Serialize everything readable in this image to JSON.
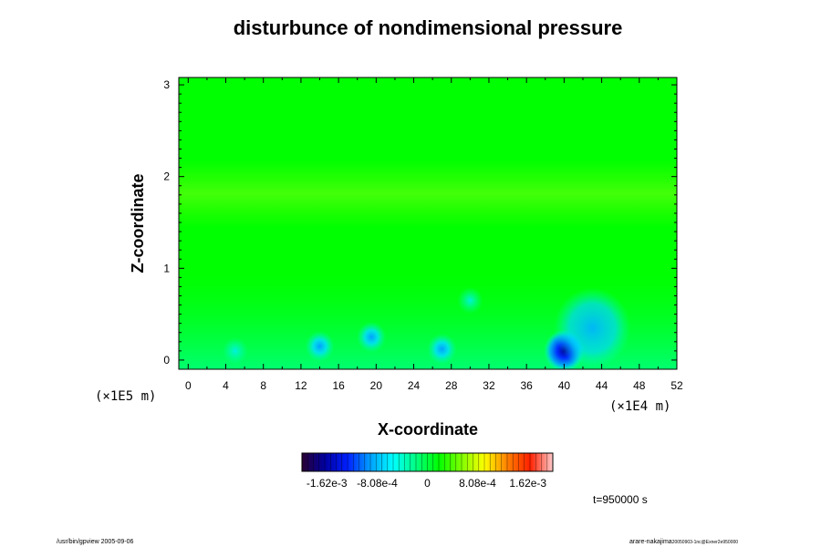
{
  "chart_data": {
    "type": "heatmap",
    "title": "disturbunce of nondimensional pressure",
    "xlabel": "X-coordinate",
    "ylabel": "Z-coordinate",
    "x_ticks": [
      "0",
      "4",
      "8",
      "12",
      "16",
      "20",
      "24",
      "28",
      "32",
      "36",
      "40",
      "44",
      "48",
      "52"
    ],
    "y_ticks": [
      "0",
      "1",
      "2",
      "3"
    ],
    "xlim": [
      -1,
      52
    ],
    "ylim": [
      -0.1,
      3.08
    ],
    "x_scale_label": "(×1E4 m)",
    "y_scale_label": "(×1E5 m)",
    "colorbar": {
      "tick_labels": [
        "-1.62e-3",
        "-8.08e-4",
        "0",
        "8.08e-4",
        "1.62e-3"
      ],
      "tick_values": [
        -0.00162,
        -0.000808,
        0,
        0.000808,
        0.00162
      ],
      "range": [
        -0.00202,
        0.00202
      ],
      "colors": [
        "#2a0033",
        "#0000a0",
        "#0020ff",
        "#00a0ff",
        "#00ffff",
        "#00ff80",
        "#00ff00",
        "#80ff00",
        "#ffff00",
        "#ff8000",
        "#ff2000",
        "#ffc8c8"
      ]
    },
    "background_value": 0.0,
    "features": [
      {
        "x": 40,
        "z": 0.1,
        "value": -0.00185,
        "kind": "strong low-pressure cell"
      },
      {
        "x": 43,
        "z": 0.35,
        "value": -0.00065,
        "kind": "broad low-pressure region"
      },
      {
        "x": 14,
        "z": 0.15,
        "value": -0.0007,
        "kind": "low-pressure cell"
      },
      {
        "x": 19.5,
        "z": 0.25,
        "value": -0.0006,
        "kind": "low-pressure cell"
      },
      {
        "x": 27,
        "z": 0.12,
        "value": -0.0006,
        "kind": "low-pressure cell"
      },
      {
        "x": 30,
        "z": 0.65,
        "value": -0.0004,
        "kind": "weak low-pressure cell"
      },
      {
        "x": 5,
        "z": 0.1,
        "value": -0.0004,
        "kind": "weak low-pressure cell"
      },
      {
        "x": 26,
        "z": 1.75,
        "value": 0.0004,
        "kind": "weak high-pressure band"
      }
    ],
    "grid": false
  },
  "annotations": {
    "time_label": "t=950000 s",
    "footer_left": "/usr/bin/gpview 2005-09-06",
    "footer_right_main": "arare-nakajima",
    "footer_right_small": "20050903-1nc@Exner2e950000"
  }
}
